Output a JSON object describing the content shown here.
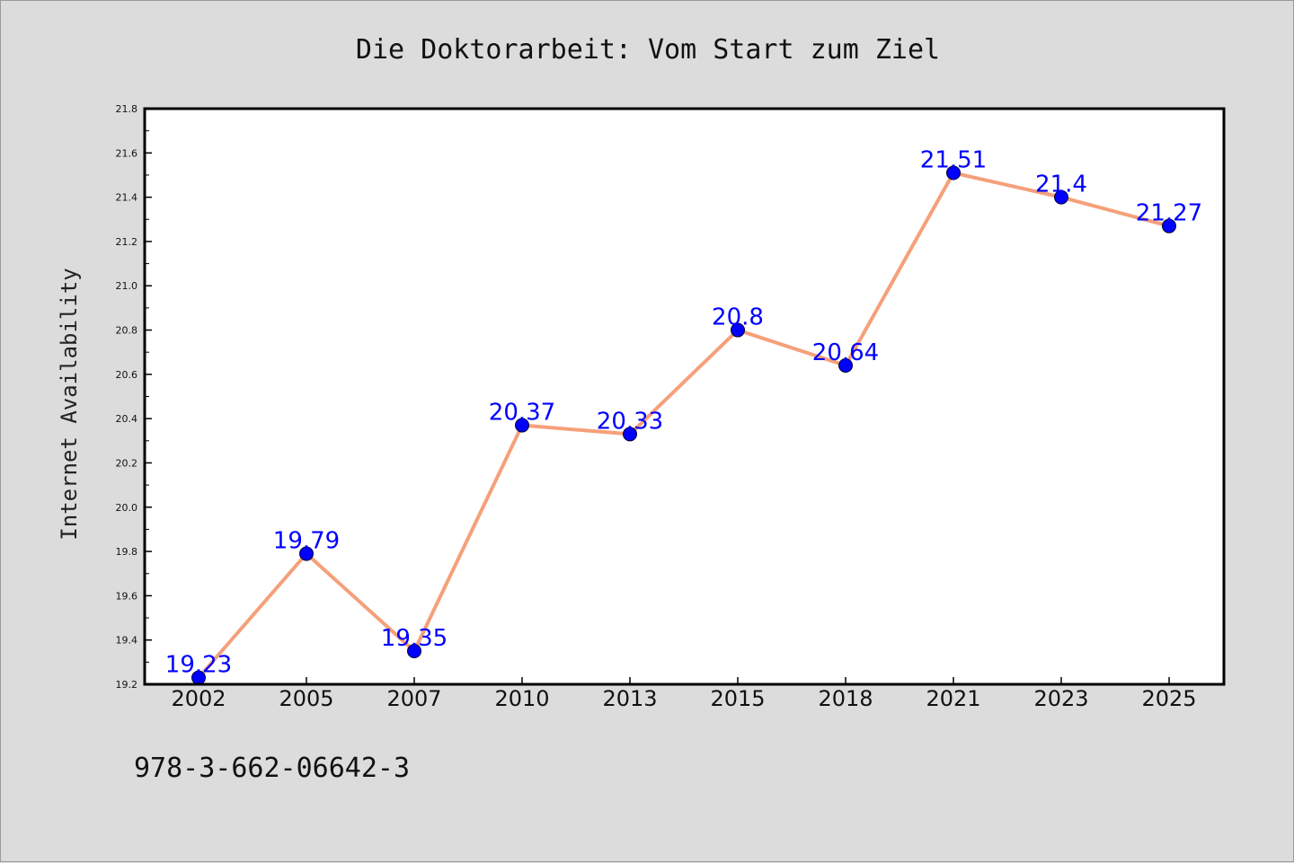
{
  "chart_data": {
    "type": "line",
    "title": "Die Doktorarbeit: Vom Start zum Ziel",
    "xlabel": "",
    "ylabel": "Internet Availability",
    "categories": [
      "2002",
      "2005",
      "2007",
      "2010",
      "2013",
      "2015",
      "2018",
      "2021",
      "2023",
      "2025"
    ],
    "values": [
      19.23,
      19.79,
      19.35,
      20.37,
      20.33,
      20.8,
      20.64,
      21.51,
      21.4,
      21.27
    ],
    "data_labels": [
      "19.23",
      "19.79",
      "19.35",
      "20.37",
      "20.33",
      "20.8",
      "20.64",
      "21.51",
      "21.4",
      "21.27"
    ],
    "ylim": [
      19.2,
      21.8
    ],
    "yticks": [
      "19.2",
      "19.4",
      "19.6",
      "19.8",
      "20.0",
      "20.2",
      "20.4",
      "20.6",
      "20.8",
      "21.0",
      "21.2",
      "21.4",
      "21.6",
      "21.8"
    ],
    "grid": false,
    "legend": "none",
    "colors": {
      "line": "#f5a07a",
      "marker": "#0000ff",
      "label": "#0000ff",
      "background": "#dcdcdc",
      "plot_background": "#ffffff"
    }
  },
  "footer": {
    "isbn": "978-3-662-06642-3"
  }
}
